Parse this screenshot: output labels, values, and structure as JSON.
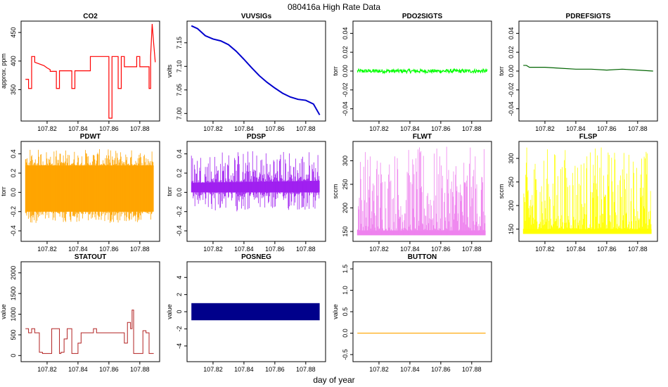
{
  "figure": {
    "title": "080416a   High Rate Data",
    "xlabel": "day of year"
  },
  "chart_data": [
    {
      "id": "co2",
      "type": "line",
      "title": "CO2",
      "ylabel": "approx. ppm",
      "color": "#ff0000",
      "xlim": [
        107.805,
        107.891
      ],
      "ylim": [
        300,
        465
      ],
      "xticks": [
        "107.82",
        "107.84",
        "107.86",
        "107.88"
      ],
      "yticks": [
        "350",
        "400",
        "450"
      ],
      "x": [
        107.806,
        107.808,
        107.808,
        107.81,
        107.81,
        107.812,
        107.812,
        107.818,
        107.82,
        107.822,
        107.822,
        107.826,
        107.826,
        107.828,
        107.828,
        107.836,
        107.836,
        107.838,
        107.838,
        107.848,
        107.848,
        107.85,
        107.85,
        107.86,
        107.86,
        107.862,
        107.862,
        107.866,
        107.866,
        107.868,
        107.868,
        107.87,
        107.87,
        107.878,
        107.878,
        107.88,
        107.88,
        107.886,
        107.886,
        107.887,
        107.887,
        107.888,
        107.889,
        107.89
      ],
      "y": [
        368,
        368,
        352,
        352,
        408,
        408,
        398,
        392,
        388,
        385,
        382,
        382,
        352,
        352,
        383,
        383,
        352,
        352,
        383,
        383,
        408,
        408,
        408,
        408,
        300,
        300,
        408,
        408,
        352,
        352,
        408,
        408,
        390,
        390,
        408,
        408,
        390,
        390,
        352,
        352,
        408,
        465,
        430,
        398
      ]
    },
    {
      "id": "vuvsigs",
      "type": "line",
      "title": "VUVSIGs",
      "ylabel": "volts",
      "color": "#0000cd",
      "xlim": [
        107.805,
        107.891
      ],
      "ylim": [
        6.99,
        7.19
      ],
      "xticks": [
        "107.82",
        "107.84",
        "107.86",
        "107.88"
      ],
      "yticks": [
        "7.00",
        "7.05",
        "7.10",
        "7.15"
      ],
      "x": [
        107.806,
        107.81,
        107.815,
        107.82,
        107.825,
        107.83,
        107.835,
        107.84,
        107.845,
        107.85,
        107.855,
        107.86,
        107.865,
        107.87,
        107.875,
        107.88,
        107.885,
        107.889
      ],
      "y": [
        7.186,
        7.18,
        7.165,
        7.158,
        7.154,
        7.146,
        7.132,
        7.115,
        7.097,
        7.08,
        7.066,
        7.054,
        7.043,
        7.035,
        7.03,
        7.028,
        7.02,
        6.997
      ]
    },
    {
      "id": "pdo2sigts",
      "type": "line",
      "title": "PDO2SIGTS",
      "ylabel": "torr",
      "color": "#00ff00",
      "xlim": [
        107.805,
        107.891
      ],
      "ylim": [
        -0.05,
        0.05
      ],
      "xticks": [
        "107.82",
        "107.84",
        "107.86",
        "107.88"
      ],
      "yticks": [
        "-0.04",
        "-0.02",
        "0.00",
        "0.02",
        "0.04"
      ],
      "x": [
        107.806,
        107.89
      ],
      "y": [
        0.0,
        0.0
      ],
      "noise": 0.002
    },
    {
      "id": "pdrefsigts",
      "type": "line",
      "title": "PDREFSIGTS",
      "ylabel": "torr",
      "color": "#006400",
      "xlim": [
        107.805,
        107.891
      ],
      "ylim": [
        -0.05,
        0.05
      ],
      "xticks": [
        "107.82",
        "107.84",
        "107.86",
        "107.88"
      ],
      "yticks": [
        "-0.04",
        "-0.02",
        "0.00",
        "0.02",
        "0.04"
      ],
      "x": [
        107.806,
        107.808,
        107.81,
        107.82,
        107.83,
        107.84,
        107.85,
        107.86,
        107.87,
        107.88,
        107.89
      ],
      "y": [
        0.006,
        0.006,
        0.004,
        0.004,
        0.003,
        0.002,
        0.002,
        0.001,
        0.002,
        0.001,
        0.0
      ]
    },
    {
      "id": "pdwt",
      "type": "band",
      "title": "PDWT",
      "ylabel": "torr",
      "color": "#ffa500",
      "xlim": [
        107.805,
        107.891
      ],
      "ylim": [
        -0.48,
        0.5
      ],
      "xticks": [
        "107.82",
        "107.84",
        "107.86",
        "107.88"
      ],
      "yticks": [
        "-0.4",
        "-0.2",
        "0.0",
        "0.2",
        "0.4"
      ],
      "x": [
        107.806,
        107.889
      ],
      "upper": [
        0.28,
        0.28
      ],
      "lower": [
        -0.2,
        -0.2
      ],
      "spike_max": 0.45,
      "spike_min": -0.32
    },
    {
      "id": "pdsp",
      "type": "band",
      "title": "PDSP",
      "ylabel": "torr",
      "color": "#a020f0",
      "xlim": [
        107.805,
        107.891
      ],
      "ylim": [
        -0.48,
        0.5
      ],
      "xticks": [
        "107.82",
        "107.84",
        "107.86",
        "107.88"
      ],
      "yticks": [
        "-0.4",
        "-0.2",
        "0.0",
        "0.2",
        "0.4"
      ],
      "x": [
        107.806,
        107.889
      ],
      "upper": [
        0.1,
        0.12
      ],
      "lower": [
        0.0,
        0.0
      ],
      "spike_max": 0.45,
      "spike_min": -0.2
    },
    {
      "id": "flwt",
      "type": "spikes",
      "title": "FLWT",
      "ylabel": "sccm",
      "color": "#ee82ee",
      "xlim": [
        107.805,
        107.891
      ],
      "ylim": [
        135,
        335
      ],
      "xticks": [
        "107.82",
        "107.84",
        "107.86",
        "107.88"
      ],
      "yticks": [
        "150",
        "200",
        "250",
        "300"
      ],
      "x": [
        107.806,
        107.889
      ],
      "base_min": 142,
      "base_max": 152,
      "spike_max": 330
    },
    {
      "id": "flsp",
      "type": "spikes",
      "title": "FLSP",
      "ylabel": "sccm",
      "color": "#ffff00",
      "xlim": [
        107.805,
        107.891
      ],
      "ylim": [
        130,
        330
      ],
      "xticks": [
        "107.82",
        "107.84",
        "107.86",
        "107.88"
      ],
      "yticks": [
        "150",
        "200",
        "250",
        "300"
      ],
      "x": [
        107.806,
        107.889
      ],
      "base_min": 140,
      "base_max": 150,
      "spike_max": 325
    },
    {
      "id": "statout",
      "type": "step",
      "title": "STATOUT",
      "ylabel": "value",
      "color": "#b22222",
      "xlim": [
        107.805,
        107.891
      ],
      "ylim": [
        -80,
        2200
      ],
      "xticks": [
        "107.82",
        "107.84",
        "107.86",
        "107.88"
      ],
      "yticks": [
        "0",
        "500",
        "1000",
        "1500",
        "2000"
      ],
      "x": [
        107.806,
        107.808,
        107.81,
        107.812,
        107.815,
        107.817,
        107.82,
        107.823,
        107.828,
        107.829,
        107.831,
        107.833,
        107.836,
        107.838,
        107.84,
        107.842,
        107.848,
        107.85,
        107.852,
        107.868,
        107.87,
        107.872,
        107.874,
        107.875,
        107.876,
        107.878,
        107.882,
        107.884,
        107.886,
        107.889
      ],
      "y": [
        650,
        550,
        650,
        550,
        80,
        50,
        50,
        650,
        50,
        80,
        400,
        650,
        50,
        50,
        300,
        550,
        550,
        650,
        550,
        550,
        300,
        800,
        650,
        1100,
        50,
        50,
        600,
        550,
        50,
        50
      ]
    },
    {
      "id": "posneg",
      "type": "bar",
      "title": "POSNEG",
      "ylabel": "value",
      "color": "#00008b",
      "xlim": [
        107.805,
        107.891
      ],
      "ylim": [
        -5.5,
        5.5
      ],
      "xticks": [
        "107.82",
        "107.84",
        "107.86",
        "107.88"
      ],
      "yticks": [
        "-4",
        "-2",
        "0",
        "2",
        "4"
      ],
      "x": [
        107.806,
        107.889
      ],
      "upper": [
        1,
        1
      ],
      "lower": [
        -1,
        -1
      ]
    },
    {
      "id": "button",
      "type": "line",
      "title": "BUTTON",
      "ylabel": "value",
      "color": "#ffa500",
      "xlim": [
        107.805,
        107.891
      ],
      "ylim": [
        -0.6,
        1.6
      ],
      "xticks": [
        "107.82",
        "107.84",
        "107.86",
        "107.88"
      ],
      "yticks": [
        "-0.5",
        "0.0",
        "0.5",
        "1.0",
        "1.5"
      ],
      "x": [
        107.806,
        107.889
      ],
      "y": [
        0,
        0
      ]
    }
  ]
}
